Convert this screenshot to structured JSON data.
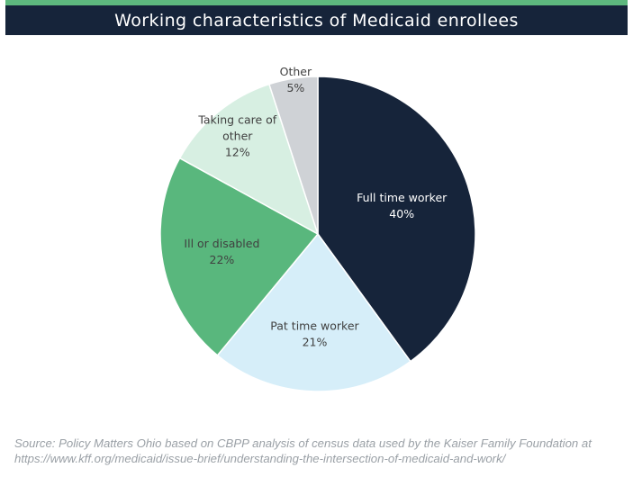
{
  "header": {
    "title": "Working characteristics of Medicaid enrollees"
  },
  "chart_data": {
    "type": "pie",
    "title": "Working characteristics of Medicaid enrollees",
    "start_angle_deg": 0,
    "direction": "clockwise",
    "slices": [
      {
        "label_lines": [
          "Full time worker"
        ],
        "value": 40,
        "value_label": "40%",
        "color": "#16243a",
        "text_color": "#ffffff"
      },
      {
        "label_lines": [
          "Pat time worker"
        ],
        "value": 21,
        "value_label": "21%",
        "color": "#d6eef9",
        "text_color": "#404040"
      },
      {
        "label_lines": [
          "Ill or disabled"
        ],
        "value": 22,
        "value_label": "22%",
        "color": "#59b77d",
        "text_color": "#404040"
      },
      {
        "label_lines": [
          "Taking care of",
          "other"
        ],
        "value": 12,
        "value_label": "12%",
        "color": "#d7efe2",
        "text_color": "#404040"
      },
      {
        "label_lines": [
          "Other"
        ],
        "value": 5,
        "value_label": "5%",
        "color": "#cfd2d6",
        "text_color": "#404040"
      }
    ]
  },
  "source_note": "Source: Policy Matters Ohio based on CBPP analysis of census data used by the Kaiser Family Foundation at https://www.kff.org/medicaid/issue-brief/understanding-the-intersection-of-medicaid-and-work/"
}
